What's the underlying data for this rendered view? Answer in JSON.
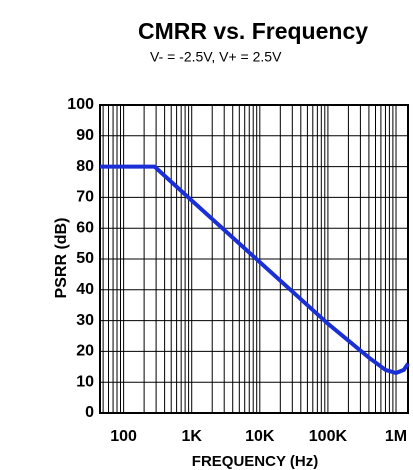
{
  "chart_data": {
    "type": "line",
    "title": "CMRR vs. Frequency",
    "subtitle": "V- = -2.5V, V+ = 2.5V",
    "xlabel": "FREQUENCY (Hz)",
    "ylabel": "PSRR (dB)",
    "xscale": "log",
    "x": [
      45,
      285,
      1000,
      10000,
      100000,
      400000,
      700000,
      1000000,
      1300000,
      1500000
    ],
    "series": [
      {
        "color": "#1a2fd6",
        "values": [
          80,
          80,
          69,
          49,
          29,
          18,
          14,
          13,
          14,
          16
        ]
      }
    ],
    "xlim": [
      45,
      1500000
    ],
    "ylim": [
      0,
      100
    ],
    "xticks": [
      100,
      {
        "value": 1000,
        "label": "1K"
      },
      {
        "value": 10000,
        "label": "10K"
      },
      {
        "value": 100000,
        "label": "100K"
      },
      {
        "value": 1000000,
        "label": "1M"
      }
    ],
    "xminorticks": [
      50,
      60,
      70,
      80,
      90,
      200,
      300,
      400,
      500,
      600,
      700,
      800,
      900,
      2000,
      3000,
      4000,
      5000,
      6000,
      7000,
      8000,
      9000,
      20000,
      30000,
      40000,
      50000,
      60000,
      70000,
      80000,
      90000,
      200000,
      300000,
      400000,
      500000,
      600000,
      700000,
      800000,
      900000
    ],
    "yticks": [
      0,
      10,
      20,
      30,
      40,
      50,
      60,
      70,
      80,
      90,
      100
    ],
    "grid": true
  }
}
